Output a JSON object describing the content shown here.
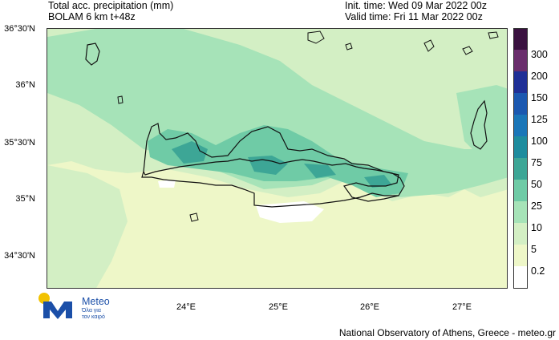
{
  "header": {
    "title_line1": "Total acc. precipitation (mm)",
    "title_line2": "BOLAM 6 km t+48z",
    "init_time": "Init. time: Wed 09 Mar 2022 00z",
    "valid_time": "Valid time: Fri 11 Mar 2022 00z"
  },
  "axes": {
    "lat_labels": [
      "36°30'N",
      "36°N",
      "35°30'N",
      "35°N",
      "34°30'N"
    ],
    "lon_labels": [
      "24°E",
      "25°E",
      "26°E",
      "27°E"
    ]
  },
  "legend": {
    "levels": [
      "0.2",
      "5",
      "10",
      "25",
      "50",
      "75",
      "100",
      "125",
      "150",
      "200",
      "300"
    ],
    "colors": [
      "#ffffff",
      "#eef7c8",
      "#d3efc4",
      "#a6e3b8",
      "#6fcba6",
      "#3da696",
      "#1e8c9e",
      "#1a76b8",
      "#1b58b0",
      "#1f2f96",
      "#6a2e6c",
      "#3a1240"
    ]
  },
  "colors": {
    "land_outline": "#111111",
    "sea_bg": "#eef7c8"
  },
  "logo": {
    "name": "Meteo",
    "tagline_line1": "Όλα για",
    "tagline_line2": "τον καιρό",
    "icon": "meteo-logo-icon"
  },
  "footer": {
    "credit": "National Observatory of Athens, Greece - meteo.gr"
  }
}
